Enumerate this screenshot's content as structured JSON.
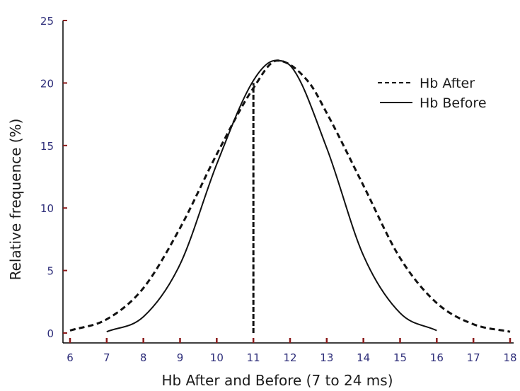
{
  "chart_data": {
    "type": "line",
    "title": "",
    "xlabel": "Hb After and Before (7 to 24 ms)",
    "ylabel": "Relative frequence (%)",
    "xlim": [
      6,
      18
    ],
    "ylim": [
      0,
      25
    ],
    "xticks": [
      6,
      7,
      8,
      9,
      10,
      11,
      12,
      13,
      14,
      15,
      16,
      17,
      18
    ],
    "yticks": [
      0,
      5,
      10,
      15,
      20,
      25
    ],
    "grid": false,
    "legend_position": "top-right",
    "colors": {
      "axis": "#000000",
      "tick": "#8b1a1a",
      "tick_label": "#2e2e7a",
      "series": "#111111"
    },
    "series": [
      {
        "name": "Hb After",
        "style": "dashed",
        "x": [
          6.0,
          7.0,
          8.0,
          9.0,
          10.0,
          11.0,
          11.65,
          12.5,
          13.0,
          14.0,
          15.0,
          16.0,
          17.0,
          18.0
        ],
        "y": [
          0.2,
          1.1,
          3.6,
          8.4,
          14.3,
          19.6,
          21.8,
          20.1,
          17.6,
          11.8,
          6.0,
          2.4,
          0.7,
          0.1
        ]
      },
      {
        "name": "Hb Before",
        "style": "solid",
        "x": [
          7.0,
          8.0,
          9.0,
          10.0,
          11.0,
          11.6,
          12.0,
          13.0,
          14.0,
          15.0,
          16.0
        ],
        "y": [
          0.1,
          1.3,
          5.5,
          13.5,
          20.2,
          21.8,
          21.4,
          14.8,
          6.2,
          1.6,
          0.2
        ]
      },
      {
        "name": "",
        "style": "dashed",
        "x": [
          11.0,
          11.0
        ],
        "y": [
          0.0,
          20.0
        ]
      }
    ]
  }
}
